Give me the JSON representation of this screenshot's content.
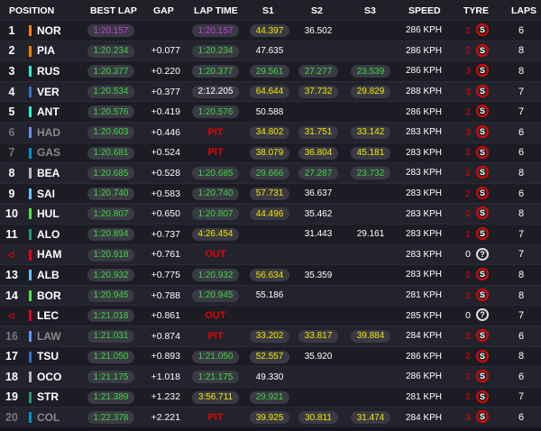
{
  "headers": {
    "position": "POSITION",
    "best_lap": "BEST LAP",
    "gap": "GAP",
    "lap_time": "LAP TIME",
    "s1": "S1",
    "s2": "S2",
    "s3": "S3",
    "speed": "SPEED",
    "tyre": "TYRE",
    "laps": "LAPS"
  },
  "colors": {
    "purple": "#c23cdc",
    "green": "#3fd43f",
    "yellow": "#f2e600",
    "red": "#e10600"
  },
  "rows": [
    {
      "pos": "1",
      "code": "NOR",
      "team": "#ff8000",
      "best": "1:20.157",
      "best_c": "purple",
      "gap": "",
      "lap": "1:20.157",
      "lap_c": "purple",
      "s1": "44.397",
      "s1_c": "yellow",
      "s2": "36.502",
      "s2_c": "white",
      "s3": "",
      "s3_c": "",
      "speed": "286 KPH",
      "tyre_laps": "2",
      "tyre": "S",
      "laps": "6"
    },
    {
      "pos": "2",
      "code": "PIA",
      "team": "#ff8000",
      "best": "1:20.234",
      "best_c": "green",
      "gap": "+0.077",
      "lap": "1:20.234",
      "lap_c": "green",
      "s1": "47.635",
      "s1_c": "white",
      "s2": "",
      "s2_c": "",
      "s3": "",
      "s3_c": "",
      "speed": "286 KPH",
      "tyre_laps": "2",
      "tyre": "S",
      "laps": "8"
    },
    {
      "pos": "3",
      "code": "RUS",
      "team": "#27f4d2",
      "best": "1:20.377",
      "best_c": "green",
      "gap": "+0.220",
      "lap": "1:20.377",
      "lap_c": "green",
      "s1": "29.561",
      "s1_c": "green",
      "s2": "27.277",
      "s2_c": "green",
      "s3": "23.539",
      "s3_c": "green",
      "speed": "286 KPH",
      "tyre_laps": "3",
      "tyre": "S",
      "laps": "8"
    },
    {
      "pos": "4",
      "code": "VER",
      "team": "#3671c6",
      "best": "1:20.534",
      "best_c": "green",
      "gap": "+0.377",
      "lap": "2:12.205",
      "lap_c": "white",
      "s1": "64.644",
      "s1_c": "yellow",
      "s2": "37.732",
      "s2_c": "yellow",
      "s3": "29.829",
      "s3_c": "yellow",
      "speed": "288 KPH",
      "tyre_laps": "3",
      "tyre": "S",
      "laps": "7"
    },
    {
      "pos": "5",
      "code": "ANT",
      "team": "#27f4d2",
      "best": "1:20.576",
      "best_c": "green",
      "gap": "+0.419",
      "lap": "1:20.576",
      "lap_c": "green",
      "s1": "50.588",
      "s1_c": "white",
      "s2": "",
      "s2_c": "",
      "s3": "",
      "s3_c": "",
      "speed": "286 KPH",
      "tyre_laps": "2",
      "tyre": "S",
      "laps": "7"
    },
    {
      "pos": "6",
      "code": "HAD",
      "team": "#6692ff",
      "best": "1:20.603",
      "best_c": "green",
      "gap": "+0.446",
      "lap": "PIT",
      "lap_c": "red",
      "s1": "34.802",
      "s1_c": "yellow",
      "s2": "31.751",
      "s2_c": "yellow",
      "s3": "33.142",
      "s3_c": "yellow",
      "speed": "283 KPH",
      "tyre_laps": "3",
      "tyre": "S",
      "laps": "6",
      "dim": true
    },
    {
      "pos": "7",
      "code": "GAS",
      "team": "#0093cc",
      "best": "1:20.681",
      "best_c": "green",
      "gap": "+0.524",
      "lap": "PIT",
      "lap_c": "red",
      "s1": "38.079",
      "s1_c": "yellow",
      "s2": "36.804",
      "s2_c": "yellow",
      "s3": "45.181",
      "s3_c": "yellow",
      "speed": "283 KPH",
      "tyre_laps": "3",
      "tyre": "S",
      "laps": "6",
      "dim": true
    },
    {
      "pos": "8",
      "code": "BEA",
      "team": "#b6babd",
      "best": "1:20.685",
      "best_c": "green",
      "gap": "+0.528",
      "lap": "1:20.685",
      "lap_c": "green",
      "s1": "29.666",
      "s1_c": "green",
      "s2": "27.287",
      "s2_c": "green",
      "s3": "23.732",
      "s3_c": "green",
      "speed": "283 KPH",
      "tyre_laps": "2",
      "tyre": "S",
      "laps": "8"
    },
    {
      "pos": "9",
      "code": "SAI",
      "team": "#64c4ff",
      "best": "1:20.740",
      "best_c": "green",
      "gap": "+0.583",
      "lap": "1:20.740",
      "lap_c": "green",
      "s1": "57.731",
      "s1_c": "yellow",
      "s2": "36.637",
      "s2_c": "white",
      "s3": "",
      "s3_c": "",
      "speed": "283 KPH",
      "tyre_laps": "2",
      "tyre": "S",
      "laps": "6"
    },
    {
      "pos": "10",
      "code": "HUL",
      "team": "#52e252",
      "best": "1:20.807",
      "best_c": "green",
      "gap": "+0.650",
      "lap": "1:20.807",
      "lap_c": "green",
      "s1": "44.496",
      "s1_c": "yellow",
      "s2": "35.462",
      "s2_c": "white",
      "s3": "",
      "s3_c": "",
      "speed": "283 KPH",
      "tyre_laps": "2",
      "tyre": "S",
      "laps": "8"
    },
    {
      "pos": "11",
      "code": "ALO",
      "team": "#229971",
      "best": "1:20.894",
      "best_c": "green",
      "gap": "+0.737",
      "lap": "4:26.454",
      "lap_c": "yellow",
      "s1": "",
      "s1_c": "",
      "s2": "31.443",
      "s2_c": "white",
      "s3": "29.161",
      "s3_c": "white",
      "speed": "283 KPH",
      "tyre_laps": "1",
      "tyre": "S",
      "laps": "7"
    },
    {
      "pos": "",
      "flag": true,
      "code": "HAM",
      "team": "#e80020",
      "best": "1:20.918",
      "best_c": "green",
      "gap": "+0.761",
      "lap": "OUT",
      "lap_c": "red",
      "s1": "",
      "s1_c": "",
      "s2": "",
      "s2_c": "",
      "s3": "",
      "s3_c": "",
      "speed": "283 KPH",
      "tyre_laps": "0",
      "tyre": "?",
      "laps": "7"
    },
    {
      "pos": "13",
      "code": "ALB",
      "team": "#64c4ff",
      "best": "1:20.932",
      "best_c": "green",
      "gap": "+0.775",
      "lap": "1:20.932",
      "lap_c": "green",
      "s1": "56.634",
      "s1_c": "yellow",
      "s2": "35.359",
      "s2_c": "white",
      "s3": "",
      "s3_c": "",
      "speed": "283 KPH",
      "tyre_laps": "2",
      "tyre": "S",
      "laps": "8"
    },
    {
      "pos": "14",
      "code": "BOR",
      "team": "#52e252",
      "best": "1:20.945",
      "best_c": "green",
      "gap": "+0.788",
      "lap": "1:20.945",
      "lap_c": "green",
      "s1": "55.186",
      "s1_c": "white",
      "s2": "",
      "s2_c": "",
      "s3": "",
      "s3_c": "",
      "speed": "281 KPH",
      "tyre_laps": "2",
      "tyre": "S",
      "laps": "8"
    },
    {
      "pos": "",
      "flag": true,
      "code": "LEC",
      "team": "#e80020",
      "best": "1:21.018",
      "best_c": "green",
      "gap": "+0.861",
      "lap": "OUT",
      "lap_c": "red",
      "s1": "",
      "s1_c": "",
      "s2": "",
      "s2_c": "",
      "s3": "",
      "s3_c": "",
      "speed": "285 KPH",
      "tyre_laps": "0",
      "tyre": "?",
      "laps": "7"
    },
    {
      "pos": "16",
      "code": "LAW",
      "team": "#6692ff",
      "best": "1:21.031",
      "best_c": "green",
      "gap": "+0.874",
      "lap": "PIT",
      "lap_c": "red",
      "s1": "33.202",
      "s1_c": "yellow",
      "s2": "33.817",
      "s2_c": "yellow",
      "s3": "39.884",
      "s3_c": "yellow",
      "speed": "284 KPH",
      "tyre_laps": "3",
      "tyre": "S",
      "laps": "6",
      "dim": true
    },
    {
      "pos": "17",
      "code": "TSU",
      "team": "#3671c6",
      "best": "1:21.050",
      "best_c": "green",
      "gap": "+0.893",
      "lap": "1:21.050",
      "lap_c": "green",
      "s1": "52.557",
      "s1_c": "yellow",
      "s2": "35.920",
      "s2_c": "white",
      "s3": "",
      "s3_c": "",
      "speed": "286 KPH",
      "tyre_laps": "2",
      "tyre": "S",
      "laps": "8"
    },
    {
      "pos": "18",
      "code": "OCO",
      "team": "#b6babd",
      "best": "1:21.175",
      "best_c": "green",
      "gap": "+1.018",
      "lap": "1:21.175",
      "lap_c": "green",
      "s1": "49.330",
      "s1_c": "white",
      "s2": "",
      "s2_c": "",
      "s3": "",
      "s3_c": "",
      "speed": "286 KPH",
      "tyre_laps": "2",
      "tyre": "S",
      "laps": "6"
    },
    {
      "pos": "19",
      "code": "STR",
      "team": "#229971",
      "best": "1:21.389",
      "best_c": "green",
      "gap": "+1.232",
      "lap": "3:56.711",
      "lap_c": "yellow",
      "s1": "29.921",
      "s1_c": "green",
      "s2": "",
      "s2_c": "",
      "s3": "",
      "s3_c": "",
      "speed": "281 KPH",
      "tyre_laps": "2",
      "tyre": "S",
      "laps": "7"
    },
    {
      "pos": "20",
      "code": "COL",
      "team": "#0093cc",
      "best": "1:22.378",
      "best_c": "green",
      "gap": "+2.221",
      "lap": "PIT",
      "lap_c": "red",
      "s1": "39.925",
      "s1_c": "yellow",
      "s2": "30.811",
      "s2_c": "yellow",
      "s3": "31.474",
      "s3_c": "yellow",
      "speed": "284 KPH",
      "tyre_laps": "3",
      "tyre": "S",
      "laps": "6",
      "dim": true
    }
  ]
}
